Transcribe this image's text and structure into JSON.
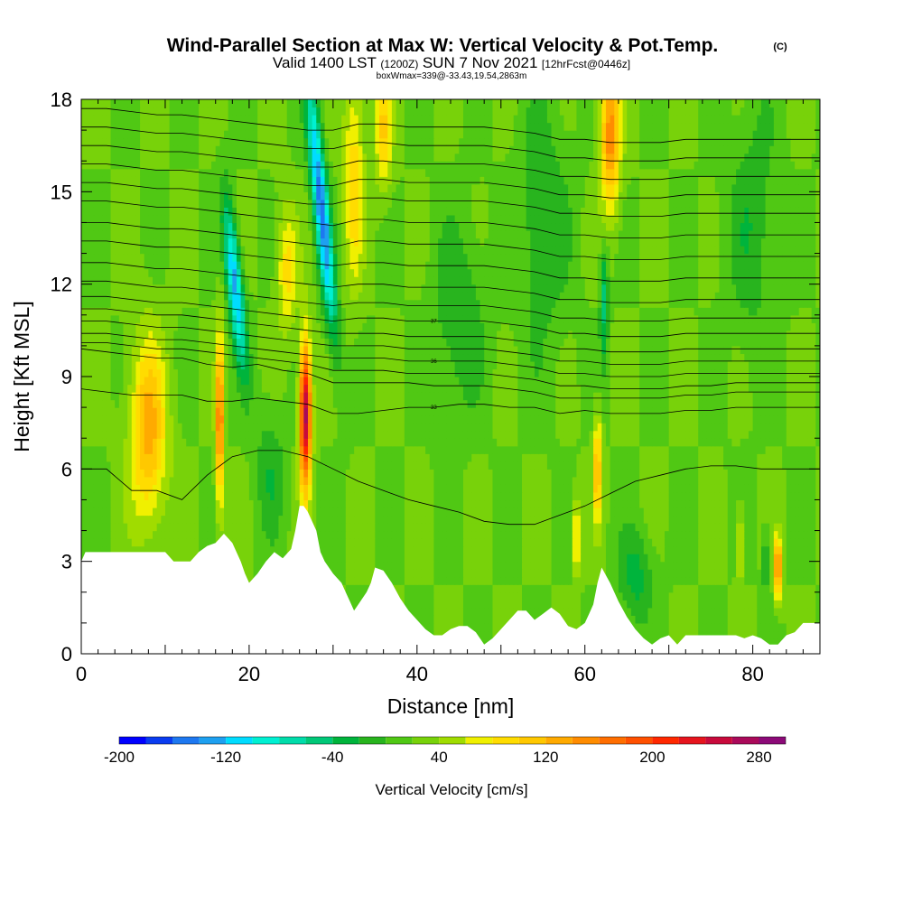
{
  "header": {
    "title": "Wind-Parallel Section at Max W: Vertical Velocity & Pot.Temp.",
    "copyright": "(C)",
    "valid_prefix": "Valid 1400 LST",
    "valid_utc": "(1200Z)",
    "valid_date": "SUN 7 Nov 2021",
    "forecast": "[12hrFcst@0446z]",
    "box_info": "boxWmax=339@-33.43,19.54,2863m"
  },
  "chart_data": {
    "type": "heatmap",
    "xlabel": "Distance [nm]",
    "ylabel": "Height [Kft MSL]",
    "xlim": [
      0,
      88
    ],
    "ylim": [
      0,
      18
    ],
    "x_ticks": [
      0,
      20,
      40,
      60,
      80
    ],
    "y_ticks": [
      0,
      3,
      6,
      9,
      12,
      15,
      18
    ],
    "background_w": 20,
    "updrafts": [
      {
        "x": 8,
        "width": 2.2,
        "y_center": 7.2,
        "y_spread": 3.0,
        "w": 110
      },
      {
        "x": 16.5,
        "width": 0.5,
        "y_center": 7.5,
        "y_spread": 2.8,
        "w": 150
      },
      {
        "x": 26.7,
        "width": 0.7,
        "y_center": 7.8,
        "y_spread": 2.4,
        "w": 250
      },
      {
        "x": 32.5,
        "width": 1.2,
        "y_center": 15.5,
        "y_spread": 3.5,
        "w": 75
      },
      {
        "x": 36,
        "width": 1.0,
        "y_center": 17.0,
        "y_spread": 2.0,
        "w": 80
      },
      {
        "x": 63,
        "width": 1.2,
        "y_center": 16.8,
        "y_spread": 2.5,
        "w": 130
      },
      {
        "x": 61.5,
        "width": 0.45,
        "y_center": 6.0,
        "y_spread": 1.8,
        "w": 110
      },
      {
        "x": 59,
        "width": 0.4,
        "y_center": 3.8,
        "y_spread": 1.2,
        "w": 90
      },
      {
        "x": 83,
        "width": 0.4,
        "y_center": 2.8,
        "y_spread": 1.0,
        "w": 160
      },
      {
        "x": 78.5,
        "width": 0.4,
        "y_center": 3.5,
        "y_spread": 1.2,
        "w": 70
      },
      {
        "x": 24.5,
        "width": 1.2,
        "y_center": 12.5,
        "y_spread": 2.0,
        "w": 70
      }
    ],
    "downdrafts": [
      {
        "x": 28.6,
        "width": 0.9,
        "y_center": 14.5,
        "y_spread": 4.0,
        "w": -170
      },
      {
        "x": 18.3,
        "width": 0.9,
        "y_center": 12.0,
        "y_spread": 2.6,
        "w": -150
      },
      {
        "x": 22.5,
        "width": 1.8,
        "y_center": 6.0,
        "y_spread": 2.2,
        "w": -35
      },
      {
        "x": 45,
        "width": 3.0,
        "y_center": 11.0,
        "y_spread": 3.0,
        "w": -40
      },
      {
        "x": 55,
        "width": 3.0,
        "y_center": 14.0,
        "y_spread": 4.0,
        "w": -40
      },
      {
        "x": 66,
        "width": 2.0,
        "y_center": 2.5,
        "y_spread": 1.5,
        "w": -50
      },
      {
        "x": 80,
        "width": 3.0,
        "y_center": 14.0,
        "y_spread": 4.0,
        "w": -35
      },
      {
        "x": 62.3,
        "width": 0.5,
        "y_center": 11.5,
        "y_spread": 2.0,
        "w": -70
      },
      {
        "x": 81.5,
        "width": 0.4,
        "y_center": 3.0,
        "y_spread": 1.0,
        "w": -60
      }
    ],
    "terrain": {
      "x": [
        0,
        0.5,
        1,
        10,
        11,
        13,
        14,
        15,
        16,
        17,
        18,
        19,
        19.5,
        20,
        21,
        22,
        23,
        24,
        25,
        25.5,
        26,
        26.5,
        27,
        28,
        28.5,
        29,
        30,
        31,
        31.5,
        32,
        32.5,
        33,
        34,
        34.5,
        35,
        36,
        37,
        38,
        39,
        40,
        41,
        42,
        43,
        44,
        45,
        46,
        47,
        48,
        49,
        50,
        51,
        52,
        53,
        54,
        55,
        56,
        57,
        58,
        59,
        60,
        60.5,
        61,
        61.5,
        62,
        63,
        64,
        65,
        66,
        67,
        68,
        69,
        70,
        71,
        72,
        73,
        74,
        75,
        76,
        77,
        78,
        79,
        80,
        81,
        82,
        83,
        84,
        85,
        86,
        87,
        88
      ],
      "y": [
        3.0,
        3.3,
        3.3,
        3.3,
        3.0,
        3.0,
        3.3,
        3.5,
        3.6,
        3.9,
        3.6,
        3.0,
        2.6,
        2.3,
        2.6,
        3.0,
        3.3,
        3.1,
        3.4,
        4.0,
        4.8,
        4.8,
        4.6,
        4.0,
        3.3,
        3.0,
        2.6,
        2.3,
        2.0,
        1.7,
        1.4,
        1.6,
        2.0,
        2.3,
        2.8,
        2.7,
        2.3,
        1.8,
        1.4,
        1.1,
        0.8,
        0.6,
        0.6,
        0.8,
        0.9,
        0.9,
        0.7,
        0.3,
        0.5,
        0.8,
        1.1,
        1.4,
        1.4,
        1.1,
        1.3,
        1.5,
        1.3,
        0.9,
        0.8,
        1.0,
        1.3,
        1.6,
        2.3,
        2.8,
        2.3,
        1.7,
        1.2,
        0.8,
        0.5,
        0.3,
        0.5,
        0.6,
        0.3,
        0.6,
        0.6,
        0.6,
        0.6,
        0.6,
        0.6,
        0.6,
        0.5,
        0.6,
        0.5,
        0.3,
        0.3,
        0.6,
        0.7,
        1.0,
        1.0,
        1.0
      ]
    },
    "theta_contours": [
      {
        "label": "",
        "y": [
          6.0,
          6.0,
          5.3,
          5.3,
          5.0,
          5.8,
          6.4,
          6.6,
          6.6,
          6.4,
          6.0,
          5.6,
          5.3,
          5.0,
          4.8,
          4.6,
          4.3,
          4.2,
          4.2,
          4.5,
          4.8,
          5.2,
          5.6,
          5.8,
          6.0,
          6.1,
          6.1,
          6.0,
          6.0
        ]
      },
      {
        "label": "33",
        "y": [
          8.6,
          8.5,
          8.4,
          8.4,
          8.4,
          8.2,
          8.2,
          8.3,
          8.2,
          8.1,
          7.8,
          7.8,
          7.9,
          8.0,
          8.0,
          8.1,
          8.1,
          8.0,
          8.0,
          7.8,
          7.9,
          7.8,
          7.8,
          7.8,
          7.9,
          7.9,
          8.0,
          8.0,
          8.0
        ]
      },
      {
        "label": "",
        "y": [
          9.9,
          9.8,
          9.7,
          9.6,
          9.6,
          9.4,
          9.3,
          9.4,
          9.2,
          9.1,
          8.8,
          8.8,
          8.8,
          8.8,
          8.7,
          8.7,
          8.7,
          8.6,
          8.5,
          8.3,
          8.3,
          8.3,
          8.3,
          8.3,
          8.4,
          8.4,
          8.5,
          8.5,
          8.5
        ]
      },
      {
        "label": "",
        "y": [
          10.1,
          10.1,
          10.0,
          9.9,
          9.9,
          9.8,
          9.7,
          9.6,
          9.5,
          9.4,
          9.2,
          9.2,
          9.2,
          9.1,
          9.1,
          9.1,
          9.1,
          9.0,
          8.9,
          8.7,
          8.7,
          8.6,
          8.6,
          8.6,
          8.7,
          8.7,
          8.8,
          8.8,
          8.8
        ]
      },
      {
        "label": "36",
        "y": [
          10.4,
          10.4,
          10.3,
          10.2,
          10.2,
          10.1,
          10.0,
          9.9,
          9.8,
          9.7,
          9.6,
          9.6,
          9.6,
          9.5,
          9.5,
          9.5,
          9.5,
          9.4,
          9.3,
          9.1,
          9.1,
          9.0,
          9.0,
          9.0,
          9.1,
          9.1,
          9.1,
          9.1,
          9.1
        ]
      },
      {
        "label": "",
        "y": [
          10.8,
          10.8,
          10.7,
          10.6,
          10.6,
          10.5,
          10.4,
          10.3,
          10.2,
          10.1,
          10.0,
          10.0,
          10.0,
          9.9,
          9.9,
          9.9,
          9.9,
          9.8,
          9.7,
          9.5,
          9.5,
          9.4,
          9.4,
          9.4,
          9.5,
          9.5,
          9.5,
          9.5,
          9.5
        ]
      },
      {
        "label": "",
        "y": [
          11.2,
          11.2,
          11.1,
          11.0,
          11.0,
          10.9,
          10.8,
          10.7,
          10.6,
          10.5,
          10.4,
          10.4,
          10.4,
          10.3,
          10.3,
          10.3,
          10.3,
          10.2,
          10.1,
          9.9,
          9.9,
          9.8,
          9.8,
          9.8,
          9.9,
          9.9,
          9.9,
          9.9,
          9.9
        ]
      },
      {
        "label": "37",
        "y": [
          11.6,
          11.6,
          11.5,
          11.4,
          11.4,
          11.3,
          11.2,
          11.1,
          11.0,
          10.9,
          10.8,
          10.9,
          10.9,
          10.8,
          10.8,
          10.8,
          10.8,
          10.7,
          10.6,
          10.4,
          10.4,
          10.3,
          10.3,
          10.3,
          10.4,
          10.4,
          10.4,
          10.4,
          10.4
        ]
      },
      {
        "label": "",
        "y": [
          12.1,
          12.1,
          12.0,
          11.9,
          11.9,
          11.8,
          11.7,
          11.6,
          11.5,
          11.4,
          11.3,
          11.4,
          11.4,
          11.3,
          11.3,
          11.3,
          11.3,
          11.2,
          11.1,
          10.9,
          10.9,
          10.8,
          10.8,
          10.8,
          10.9,
          10.9,
          10.9,
          10.9,
          10.9
        ]
      },
      {
        "label": "",
        "y": [
          12.7,
          12.7,
          12.6,
          12.5,
          12.5,
          12.4,
          12.3,
          12.2,
          12.1,
          12.0,
          11.9,
          12.0,
          12.0,
          11.9,
          11.9,
          11.9,
          11.9,
          11.8,
          11.7,
          11.5,
          11.5,
          11.4,
          11.4,
          11.4,
          11.5,
          11.5,
          11.5,
          11.5,
          11.5
        ]
      },
      {
        "label": "",
        "y": [
          13.4,
          13.4,
          13.3,
          13.2,
          13.2,
          13.1,
          13.0,
          12.9,
          12.8,
          12.7,
          12.6,
          12.7,
          12.7,
          12.6,
          12.6,
          12.6,
          12.6,
          12.5,
          12.4,
          12.2,
          12.2,
          12.1,
          12.1,
          12.1,
          12.2,
          12.2,
          12.2,
          12.2,
          12.2
        ]
      },
      {
        "label": "",
        "y": [
          14.0,
          14.0,
          13.9,
          13.8,
          13.8,
          13.7,
          13.6,
          13.5,
          13.4,
          13.3,
          13.2,
          13.4,
          13.4,
          13.3,
          13.3,
          13.3,
          13.3,
          13.2,
          13.1,
          12.9,
          12.9,
          12.8,
          12.8,
          12.8,
          12.9,
          12.9,
          12.9,
          12.9,
          12.9
        ]
      },
      {
        "label": "",
        "y": [
          14.7,
          14.7,
          14.6,
          14.5,
          14.5,
          14.4,
          14.3,
          14.2,
          14.1,
          14.0,
          13.9,
          14.1,
          14.1,
          14.0,
          14.0,
          14.0,
          14.0,
          13.9,
          13.8,
          13.6,
          13.6,
          13.5,
          13.5,
          13.5,
          13.6,
          13.6,
          13.6,
          13.6,
          13.6
        ]
      },
      {
        "label": "",
        "y": [
          15.3,
          15.3,
          15.2,
          15.1,
          15.1,
          15.0,
          14.9,
          14.8,
          14.7,
          14.6,
          14.6,
          14.8,
          14.8,
          14.7,
          14.7,
          14.7,
          14.7,
          14.6,
          14.5,
          14.3,
          14.3,
          14.2,
          14.2,
          14.2,
          14.3,
          14.3,
          14.3,
          14.3,
          14.3
        ]
      },
      {
        "label": "",
        "y": [
          15.9,
          15.9,
          15.8,
          15.7,
          15.7,
          15.6,
          15.5,
          15.4,
          15.3,
          15.2,
          15.2,
          15.4,
          15.4,
          15.3,
          15.3,
          15.3,
          15.3,
          15.2,
          15.1,
          14.9,
          14.9,
          14.8,
          14.8,
          14.8,
          14.9,
          14.9,
          14.9,
          14.9,
          14.9
        ]
      },
      {
        "label": "",
        "y": [
          16.5,
          16.5,
          16.4,
          16.3,
          16.3,
          16.2,
          16.1,
          16.0,
          15.9,
          15.8,
          15.8,
          16.0,
          16.0,
          15.9,
          15.9,
          15.9,
          15.9,
          15.8,
          15.7,
          15.5,
          15.5,
          15.4,
          15.4,
          15.4,
          15.5,
          15.5,
          15.5,
          15.5,
          15.5
        ]
      },
      {
        "label": "",
        "y": [
          17.1,
          17.1,
          17.0,
          16.9,
          16.9,
          16.8,
          16.7,
          16.6,
          16.5,
          16.4,
          16.4,
          16.6,
          16.6,
          16.5,
          16.5,
          16.5,
          16.5,
          16.4,
          16.3,
          16.1,
          16.1,
          16.0,
          16.0,
          16.0,
          16.1,
          16.1,
          16.1,
          16.1,
          16.1
        ]
      },
      {
        "label": "",
        "y": [
          17.7,
          17.7,
          17.6,
          17.5,
          17.5,
          17.4,
          17.3,
          17.2,
          17.1,
          17.0,
          17.0,
          17.2,
          17.2,
          17.1,
          17.1,
          17.1,
          17.1,
          17.0,
          16.9,
          16.7,
          16.7,
          16.6,
          16.6,
          16.6,
          16.7,
          16.7,
          16.7,
          16.7,
          16.7
        ]
      }
    ],
    "contour_x": [
      0,
      3,
      6,
      9,
      12,
      15,
      18,
      21,
      24,
      27,
      30,
      33,
      36,
      39,
      42,
      45,
      48,
      51,
      54,
      57,
      60,
      63,
      66,
      69,
      72,
      75,
      78,
      81,
      88
    ],
    "colorbar": {
      "levels": [
        -200,
        -180,
        -160,
        -140,
        -120,
        -100,
        -80,
        -60,
        -40,
        -20,
        0,
        20,
        40,
        60,
        80,
        100,
        120,
        140,
        160,
        180,
        200,
        220,
        240,
        260,
        280,
        300
      ],
      "colors": [
        "#0000ff",
        "#0a3cf0",
        "#1e78f0",
        "#1ea0f0",
        "#00dcff",
        "#00f0d2",
        "#00dcaa",
        "#00c878",
        "#00b43c",
        "#28b41e",
        "#50c814",
        "#78d20a",
        "#a0dc00",
        "#f0f000",
        "#ffdc00",
        "#ffc800",
        "#ffaa00",
        "#ff8c00",
        "#ff6e00",
        "#ff5000",
        "#ff2800",
        "#e6141e",
        "#c80a3c",
        "#aa0a5a",
        "#8c0a78"
      ],
      "tick_labels": [
        "-200",
        "-120",
        "-40",
        "40",
        "120",
        "200",
        "280"
      ],
      "tick_values": [
        -200,
        -120,
        -40,
        40,
        120,
        200,
        280
      ],
      "label": "Vertical Velocity [cm/s]"
    }
  }
}
